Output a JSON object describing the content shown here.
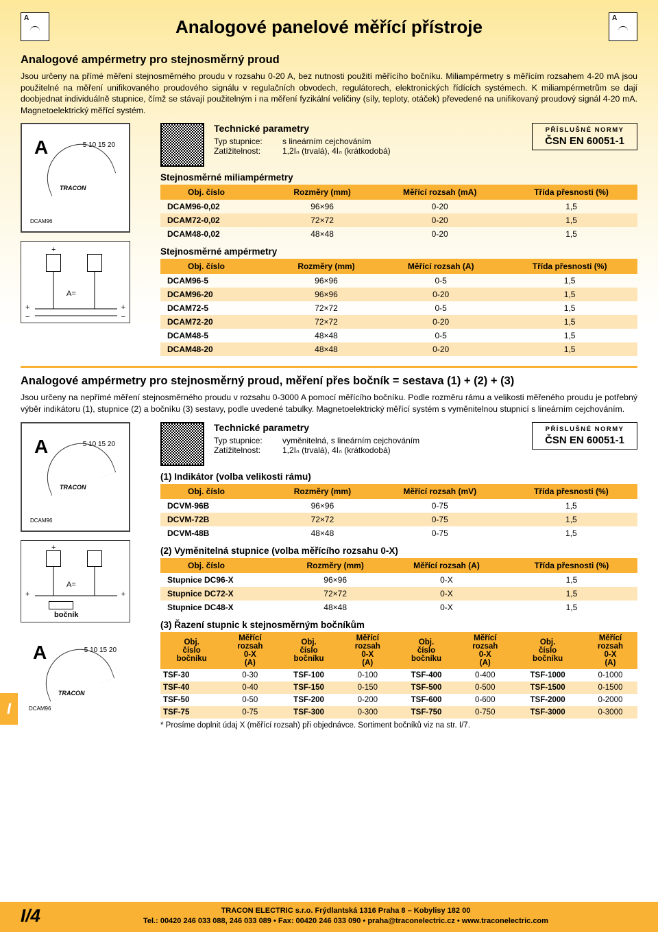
{
  "page_title": "Analogové panelové měřící přístroje",
  "section1": {
    "heading": "Analogové ampérmetry pro stejnosměrný proud",
    "body": "Jsou určeny na přímé měření stejnosměrného proudu v rozsahu 0-20 A, bez nutnosti použití měřícího bočníku. Miliampérmetry s měřícím rozsahem 4-20 mA jsou použitelné na měření unifikovaného proudového signálu v regulačních obvodech, regulátorech, elektronických řídících systémech. K miliampérmetrům se dají doobjednat individuálně stupnice, čímž se stávají použitelným i na měření fyzikální veličiny (síly, teploty, otáček) převedené na unifikovaný proudový signál 4-20 mA. Magnetoelektrický měřící systém."
  },
  "tech1": {
    "title": "Technické parametry",
    "type_label": "Typ stupnice:",
    "type_value": "s lineárním cejchováním",
    "load_label": "Zatížitelnost:",
    "load_value": "1,2Iₙ (trvalá), 4Iₙ (krátkodobá)"
  },
  "norms": {
    "header": "PŘÍSLUŠNÉ NORMY",
    "value": "ČSN EN 60051-1"
  },
  "table1": {
    "heading": "Stejnosměrné miliampérmetry",
    "headers": [
      "Obj. číslo",
      "Rozměry (mm)",
      "Měřící rozsah (mA)",
      "Třída přesnosti (%)"
    ],
    "rows": [
      [
        "DCAM96-0,02",
        "96×96",
        "0-20",
        "1,5"
      ],
      [
        "DCAM72-0,02",
        "72×72",
        "0-20",
        "1,5"
      ],
      [
        "DCAM48-0,02",
        "48×48",
        "0-20",
        "1,5"
      ]
    ]
  },
  "table2": {
    "heading": "Stejnosměrné ampérmetry",
    "headers": [
      "Obj. číslo",
      "Rozměry (mm)",
      "Měřící rozsah (A)",
      "Třída přesnosti (%)"
    ],
    "rows": [
      [
        "DCAM96-5",
        "96×96",
        "0-5",
        "1,5"
      ],
      [
        "DCAM96-20",
        "96×96",
        "0-20",
        "1,5"
      ],
      [
        "DCAM72-5",
        "72×72",
        "0-5",
        "1,5"
      ],
      [
        "DCAM72-20",
        "72×72",
        "0-20",
        "1,5"
      ],
      [
        "DCAM48-5",
        "48×48",
        "0-5",
        "1,5"
      ],
      [
        "DCAM48-20",
        "48×48",
        "0-20",
        "1,5"
      ]
    ]
  },
  "section2": {
    "heading": "Analogové ampérmetry pro stejnosměrný proud, měření přes bočník = sestava (1) + (2) + (3)",
    "body": "Jsou určeny na nepřímé měření stejnosměrného proudu v rozsahu 0-3000 A pomocí měřícího bočníku. Podle rozměru rámu a velikosti měřeného proudu je potřebný výběr indikátoru (1), stupnice (2) a bočníku (3) sestavy, podle uvedené tabulky. Magnetoelektrický měřící systém s vyměnitelnou stupnicí s lineárním cejchováním."
  },
  "tech2": {
    "title": "Technické parametry",
    "type_label": "Typ stupnice:",
    "type_value": "vyměnitelná, s lineárním cejchováním",
    "load_label": "Zatížitelnost:",
    "load_value": "1,2Iₙ (trvalá), 4Iₙ (krátkodobá)"
  },
  "table3": {
    "heading": "(1) Indikátor (volba velikosti rámu)",
    "headers": [
      "Obj. číslo",
      "Rozměry (mm)",
      "Měřící rozsah (mV)",
      "Třída přesnosti (%)"
    ],
    "rows": [
      [
        "DCVM-96B",
        "96×96",
        "0-75",
        "1,5"
      ],
      [
        "DCVM-72B",
        "72×72",
        "0-75",
        "1,5"
      ],
      [
        "DCVM-48B",
        "48×48",
        "0-75",
        "1,5"
      ]
    ]
  },
  "table4": {
    "heading": "(2) Vyměnitelná stupnice (volba měřícího rozsahu 0-X)",
    "headers": [
      "Obj. číslo",
      "Rozměry (mm)",
      "Měřící rozsah (A)",
      "Třída přesnosti (%)"
    ],
    "rows": [
      [
        "Stupnice DC96-X",
        "96×96",
        "0-X",
        "1,5"
      ],
      [
        "Stupnice DC72-X",
        "72×72",
        "0-X",
        "1,5"
      ],
      [
        "Stupnice DC48-X",
        "48×48",
        "0-X",
        "1,5"
      ]
    ]
  },
  "table5": {
    "heading": "(3) Řazení stupnic k stejnosměrným bočníkům",
    "col_pairs": [
      "Obj. číslo bočníku",
      "Měřící rozsah 0-X (A)"
    ],
    "rows": [
      [
        "TSF-30",
        "0-30",
        "TSF-100",
        "0-100",
        "TSF-400",
        "0-400",
        "TSF-1000",
        "0-1000"
      ],
      [
        "TSF-40",
        "0-40",
        "TSF-150",
        "0-150",
        "TSF-500",
        "0-500",
        "TSF-1500",
        "0-1500"
      ],
      [
        "TSF-50",
        "0-50",
        "TSF-200",
        "0-200",
        "TSF-600",
        "0-600",
        "TSF-2000",
        "0-2000"
      ],
      [
        "TSF-75",
        "0-75",
        "TSF-300",
        "0-300",
        "TSF-750",
        "0-750",
        "TSF-3000",
        "0-3000"
      ]
    ],
    "footnote": "* Prosíme doplnit údaj X (měřící rozsah) při objednávce. Sortiment bočníků viz na str. I/7."
  },
  "schematic_labels": {
    "a": "A=",
    "bocnik": "bočník",
    "plus": "+",
    "minus": "−"
  },
  "product": {
    "a": "A",
    "scale": "5  10  15  20",
    "brand": "TRACON",
    "model": "DCAM96"
  },
  "footer": {
    "page": "I/4",
    "line1": "TRACON ELECTRIC s.r.o. Frýdlantská 1316 Praha 8 – Kobylisy 182 00",
    "line2": "Tel.: 00420 246 033 088, 246 033 089 • Fax: 00420 246 033 090 • praha@traconelectric.cz • www.traconelectric.com"
  },
  "side_tab": "I"
}
